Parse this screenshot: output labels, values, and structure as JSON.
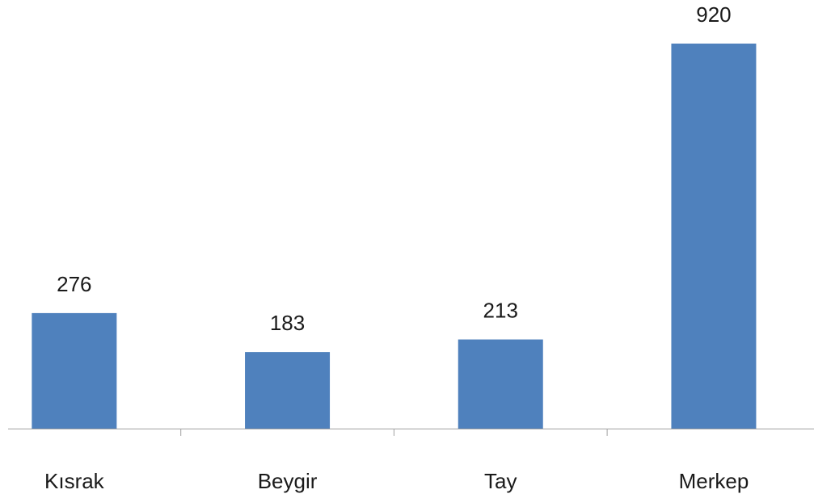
{
  "chart_data": {
    "type": "bar",
    "categories": [
      "Kısrak",
      "Beygir",
      "Tay",
      "Merkep"
    ],
    "values": [
      276,
      183,
      213,
      920
    ],
    "color": "#4f81bd"
  }
}
